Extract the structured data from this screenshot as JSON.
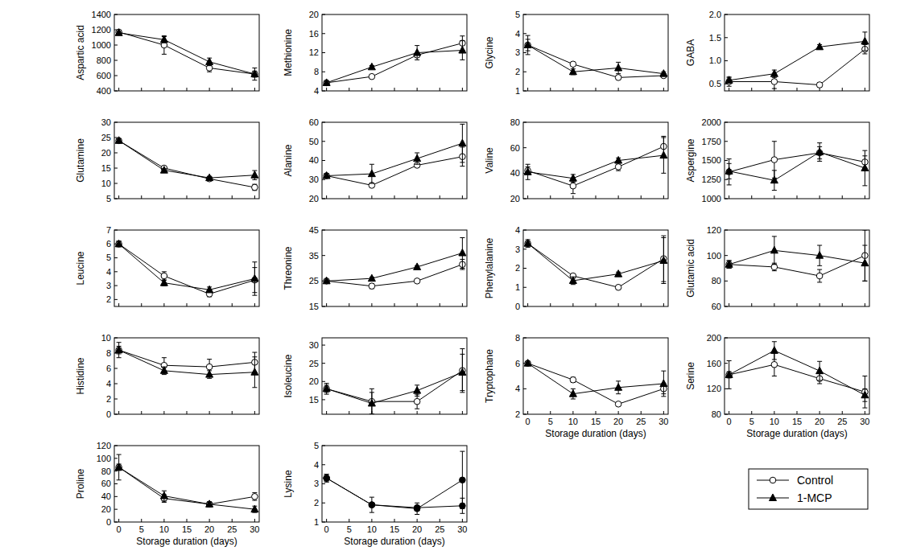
{
  "chart_data": [
    {
      "type": "line",
      "ylabel": "Aspartic acid",
      "x": [
        0,
        10,
        20,
        30
      ],
      "xlim": [
        -1,
        31
      ],
      "xticks": [
        0,
        5,
        10,
        15,
        20,
        25,
        30
      ],
      "ylim": [
        400,
        1400
      ],
      "yticks": [
        400,
        600,
        800,
        1000,
        1200,
        1400
      ],
      "tick_labels": "y",
      "series": [
        {
          "name": "Control",
          "color": "#000000",
          "marker": "open-circle",
          "values": [
            1170,
            1000,
            700,
            620
          ],
          "errors": [
            20,
            120,
            50,
            40
          ]
        },
        {
          "name": "1-MCP",
          "color": "#000000",
          "marker": "triangle",
          "values": [
            1160,
            1070,
            780,
            620
          ],
          "errors": [
            20,
            40,
            50,
            80
          ]
        }
      ]
    },
    {
      "type": "line",
      "ylabel": "Methionine",
      "x": [
        0,
        10,
        20,
        30
      ],
      "xlim": [
        -1,
        31
      ],
      "xticks": [
        0,
        5,
        10,
        15,
        20,
        25,
        30
      ],
      "ylim": [
        4,
        20
      ],
      "yticks": [
        4,
        8,
        12,
        16,
        20
      ],
      "tick_labels": "y",
      "series": [
        {
          "name": "Control",
          "color": "#000000",
          "marker": "open-circle",
          "values": [
            5.7,
            7,
            11.5,
            14
          ],
          "errors": [
            0.3,
            0.3,
            0.5,
            1.5
          ]
        },
        {
          "name": "1-MCP",
          "color": "#000000",
          "marker": "triangle",
          "values": [
            5.7,
            9,
            12,
            12.5
          ],
          "errors": [
            0.3,
            0.3,
            1.5,
            2
          ]
        }
      ]
    },
    {
      "type": "line",
      "ylabel": "Glycine",
      "x": [
        0,
        10,
        20,
        30
      ],
      "xlim": [
        -1,
        31
      ],
      "xticks": [
        0,
        5,
        10,
        15,
        20,
        25,
        30
      ],
      "ylim": [
        1,
        5
      ],
      "yticks": [
        1,
        2,
        3,
        4,
        5
      ],
      "tick_labels": "y",
      "series": [
        {
          "name": "Control",
          "color": "#000000",
          "marker": "open-circle",
          "values": [
            3.4,
            2.4,
            1.7,
            1.8
          ],
          "errors": [
            0.3,
            0.1,
            0.1,
            0.1
          ]
        },
        {
          "name": "1-MCP",
          "color": "#000000",
          "marker": "triangle",
          "values": [
            3.4,
            2.0,
            2.2,
            1.9
          ],
          "errors": [
            0.5,
            0.15,
            0.3,
            0.1
          ]
        }
      ]
    },
    {
      "type": "line",
      "ylabel": "GABA",
      "x": [
        0,
        10,
        20,
        30
      ],
      "xlim": [
        -1,
        31
      ],
      "xticks": [
        0,
        5,
        10,
        15,
        20,
        25,
        30
      ],
      "ylim": [
        0.35,
        2.0
      ],
      "yticks": [
        0.5,
        {
          "value": 1,
          "label": "1.0"
        },
        1.5,
        {
          "value": 2,
          "label": "2.0"
        }
      ],
      "tick_labels": "y",
      "series": [
        {
          "name": "Control",
          "color": "#000000",
          "marker": "open-circle",
          "values": [
            0.55,
            0.55,
            0.48,
            1.25
          ],
          "errors": [
            0.1,
            0.15,
            0.05,
            0.1
          ]
        },
        {
          "name": "1-MCP",
          "color": "#000000",
          "marker": "triangle",
          "values": [
            0.58,
            0.72,
            1.3,
            1.42
          ],
          "errors": [
            0.05,
            0.08,
            0.05,
            0.2
          ]
        }
      ]
    },
    {
      "type": "line",
      "ylabel": "Glutamine",
      "x": [
        0,
        10,
        20,
        30
      ],
      "xlim": [
        -1,
        31
      ],
      "xticks": [
        0,
        5,
        10,
        15,
        20,
        25,
        30
      ],
      "ylim": [
        5,
        30
      ],
      "yticks": [
        5,
        10,
        15,
        20,
        25,
        30
      ],
      "tick_labels": "y",
      "series": [
        {
          "name": "Control",
          "color": "#000000",
          "marker": "open-circle",
          "values": [
            24,
            15,
            11.5,
            8.7
          ],
          "errors": [
            0.5,
            0.5,
            0.5,
            1
          ]
        },
        {
          "name": "1-MCP",
          "color": "#000000",
          "marker": "triangle",
          "values": [
            24,
            14.3,
            11.8,
            12.7
          ],
          "errors": [
            0.5,
            0.5,
            0.5,
            1.5
          ]
        }
      ]
    },
    {
      "type": "line",
      "ylabel": "Alanine",
      "x": [
        0,
        10,
        20,
        30
      ],
      "xlim": [
        -1,
        31
      ],
      "xticks": [
        0,
        5,
        10,
        15,
        20,
        25,
        30
      ],
      "ylim": [
        20,
        60
      ],
      "yticks": [
        20,
        30,
        40,
        50,
        60
      ],
      "tick_labels": "y",
      "series": [
        {
          "name": "Control",
          "color": "#000000",
          "marker": "open-circle",
          "values": [
            32,
            27,
            37.5,
            42
          ],
          "errors": [
            1,
            1,
            1,
            5
          ]
        },
        {
          "name": "1-MCP",
          "color": "#000000",
          "marker": "triangle",
          "values": [
            32,
            33,
            41,
            49
          ],
          "errors": [
            1,
            5,
            3,
            10
          ]
        }
      ]
    },
    {
      "type": "line",
      "ylabel": "Valine",
      "x": [
        0,
        10,
        20,
        30
      ],
      "xlim": [
        -1,
        31
      ],
      "xticks": [
        0,
        5,
        10,
        15,
        20,
        25,
        30
      ],
      "ylim": [
        20,
        80
      ],
      "yticks": [
        20,
        40,
        60,
        80
      ],
      "tick_labels": "y",
      "series": [
        {
          "name": "Control",
          "color": "#000000",
          "marker": "open-circle",
          "values": [
            42,
            30,
            45,
            61
          ],
          "errors": [
            3,
            6,
            3,
            8
          ]
        },
        {
          "name": "1-MCP",
          "color": "#000000",
          "marker": "triangle",
          "values": [
            41,
            36,
            50,
            54
          ],
          "errors": [
            6,
            3,
            2,
            14
          ]
        }
      ]
    },
    {
      "type": "line",
      "ylabel": "Aspergine",
      "x": [
        0,
        10,
        20,
        30
      ],
      "xlim": [
        -1,
        31
      ],
      "xticks": [
        0,
        5,
        10,
        15,
        20,
        25,
        30
      ],
      "ylim": [
        1000,
        2000
      ],
      "yticks": [
        1000,
        1250,
        1500,
        1750,
        2000
      ],
      "tick_labels": "y",
      "series": [
        {
          "name": "Control",
          "color": "#000000",
          "marker": "open-circle",
          "values": [
            1350,
            1510,
            1600,
            1480
          ],
          "errors": [
            170,
            240,
            80,
            80
          ]
        },
        {
          "name": "1-MCP",
          "color": "#000000",
          "marker": "triangle",
          "values": [
            1360,
            1240,
            1610,
            1400
          ],
          "errors": [
            100,
            130,
            120,
            230
          ]
        }
      ]
    },
    {
      "type": "line",
      "ylabel": "Leucine",
      "x": [
        0,
        10,
        20,
        30
      ],
      "xlim": [
        -1,
        31
      ],
      "xticks": [
        0,
        5,
        10,
        15,
        20,
        25,
        30
      ],
      "ylim": [
        1.5,
        7
      ],
      "yticks": [
        2,
        3,
        4,
        5,
        6,
        7
      ],
      "tick_labels": "y",
      "series": [
        {
          "name": "Control",
          "color": "#000000",
          "marker": "open-circle",
          "values": [
            6.0,
            3.7,
            2.4,
            3.4
          ],
          "errors": [
            0.2,
            0.3,
            0.2,
            0.9
          ]
        },
        {
          "name": "1-MCP",
          "color": "#000000",
          "marker": "triangle",
          "values": [
            6.0,
            3.2,
            2.7,
            3.5
          ],
          "errors": [
            0.2,
            0.2,
            0.2,
            1.2
          ]
        }
      ]
    },
    {
      "type": "line",
      "ylabel": "Threonine",
      "x": [
        0,
        10,
        20,
        30
      ],
      "xlim": [
        -1,
        31
      ],
      "xticks": [
        0,
        5,
        10,
        15,
        20,
        25,
        30
      ],
      "ylim": [
        15,
        45
      ],
      "yticks": [
        15,
        25,
        35,
        45
      ],
      "tick_labels": "y",
      "series": [
        {
          "name": "Control",
          "color": "#000000",
          "marker": "open-circle",
          "values": [
            25,
            23,
            25,
            31.5
          ],
          "errors": [
            0.3,
            1,
            0.3,
            2
          ]
        },
        {
          "name": "1-MCP",
          "color": "#000000",
          "marker": "triangle",
          "values": [
            25,
            26,
            30.5,
            36
          ],
          "errors": [
            0.3,
            0.5,
            0.5,
            6
          ]
        }
      ]
    },
    {
      "type": "line",
      "ylabel": "Phenylalanine",
      "x": [
        0,
        10,
        20,
        30
      ],
      "xlim": [
        -1,
        31
      ],
      "xticks": [
        0,
        5,
        10,
        15,
        20,
        25,
        30
      ],
      "ylim": [
        0,
        4
      ],
      "yticks": [
        0,
        1,
        2,
        3,
        4
      ],
      "tick_labels": "y",
      "series": [
        {
          "name": "Control",
          "color": "#000000",
          "marker": "open-circle",
          "values": [
            3.3,
            1.6,
            1.0,
            2.5
          ],
          "errors": [
            0.1,
            0.1,
            0.1,
            1.2
          ]
        },
        {
          "name": "1-MCP",
          "color": "#000000",
          "marker": "triangle",
          "values": [
            3.3,
            1.35,
            1.7,
            2.4
          ],
          "errors": [
            0.2,
            0.2,
            0.1,
            1.2
          ]
        }
      ]
    },
    {
      "type": "line",
      "ylabel": "Glutamic acid",
      "x": [
        0,
        10,
        20,
        30
      ],
      "xlim": [
        -1,
        31
      ],
      "xticks": [
        0,
        5,
        10,
        15,
        20,
        25,
        30
      ],
      "ylim": [
        60,
        120
      ],
      "yticks": [
        60,
        80,
        100,
        120
      ],
      "tick_labels": "y",
      "series": [
        {
          "name": "Control",
          "color": "#000000",
          "marker": "open-circle",
          "values": [
            93,
            91,
            84,
            100
          ],
          "errors": [
            3,
            3,
            5,
            20
          ]
        },
        {
          "name": "1-MCP",
          "color": "#000000",
          "marker": "triangle",
          "values": [
            93,
            104,
            100,
            94
          ],
          "errors": [
            3,
            11,
            8,
            14
          ]
        }
      ]
    },
    {
      "type": "line",
      "ylabel": "Histidine",
      "x": [
        0,
        10,
        20,
        30
      ],
      "xlim": [
        -1,
        31
      ],
      "xticks": [
        0,
        5,
        10,
        15,
        20,
        25,
        30
      ],
      "ylim": [
        0,
        10
      ],
      "yticks": [
        0,
        2,
        4,
        6,
        8,
        10
      ],
      "tick_labels": "y",
      "series": [
        {
          "name": "Control",
          "color": "#000000",
          "marker": "open-circle",
          "values": [
            8.4,
            6.4,
            6.2,
            6.8
          ],
          "errors": [
            1,
            1,
            1,
            1.3
          ]
        },
        {
          "name": "1-MCP",
          "color": "#000000",
          "marker": "triangle",
          "values": [
            8.4,
            5.7,
            5.2,
            5.5
          ],
          "errors": [
            0.5,
            0.5,
            0.5,
            2
          ]
        }
      ]
    },
    {
      "type": "line",
      "ylabel": "Isoleucine",
      "x": [
        0,
        10,
        20,
        30
      ],
      "xlim": [
        -1,
        31
      ],
      "xticks": [
        0,
        5,
        10,
        15,
        20,
        25,
        30
      ],
      "ylim": [
        11,
        32
      ],
      "yticks": [
        15,
        20,
        25,
        30
      ],
      "tick_labels": "y",
      "series": [
        {
          "name": "Control",
          "color": "#000000",
          "marker": "open-circle",
          "values": [
            18,
            14.5,
            14.5,
            23
          ],
          "errors": [
            1.5,
            3.5,
            2,
            6
          ]
        },
        {
          "name": "1-MCP",
          "color": "#000000",
          "marker": "triangle",
          "values": [
            18,
            14,
            17.5,
            22.5
          ],
          "errors": [
            1,
            3,
            1.5,
            5
          ]
        }
      ]
    },
    {
      "type": "line",
      "ylabel": "Tryptophane",
      "xlabel": "Storage duration (days)",
      "x": [
        0,
        10,
        20,
        30
      ],
      "xlim": [
        -1,
        31
      ],
      "xticks": [
        0,
        5,
        10,
        15,
        20,
        25,
        30
      ],
      "ylim": [
        2,
        8
      ],
      "yticks": [
        2,
        4,
        6,
        8
      ],
      "series": [
        {
          "name": "Control",
          "color": "#000000",
          "marker": "open-circle",
          "values": [
            6.0,
            4.7,
            2.8,
            4.0
          ],
          "errors": [
            0.1,
            0.2,
            0.1,
            0.4
          ]
        },
        {
          "name": "1-MCP",
          "color": "#000000",
          "marker": "triangle",
          "values": [
            6.0,
            3.6,
            4.1,
            4.4
          ],
          "errors": [
            0.1,
            0.4,
            0.5,
            1
          ]
        }
      ]
    },
    {
      "type": "line",
      "ylabel": "Serine",
      "xlabel": "Storage duration (days)",
      "x": [
        0,
        10,
        20,
        30
      ],
      "xlim": [
        -1,
        31
      ],
      "xticks": [
        0,
        5,
        10,
        15,
        20,
        25,
        30
      ],
      "ylim": [
        80,
        200
      ],
      "yticks": [
        80,
        120,
        160,
        200
      ],
      "series": [
        {
          "name": "Control",
          "color": "#000000",
          "marker": "open-circle",
          "values": [
            142,
            158,
            136,
            115
          ],
          "errors": [
            22,
            18,
            8,
            25
          ]
        },
        {
          "name": "1-MCP",
          "color": "#000000",
          "marker": "triangle",
          "values": [
            142,
            180,
            148,
            110
          ],
          "errors": [
            5,
            14,
            15,
            10
          ]
        }
      ]
    },
    {
      "type": "line",
      "ylabel": "Proline",
      "xlabel": "Storage duration (days)",
      "x": [
        0,
        10,
        20,
        30
      ],
      "xlim": [
        -1,
        31
      ],
      "xticks": [
        0,
        5,
        10,
        15,
        20,
        25,
        30
      ],
      "ylim": [
        0,
        120
      ],
      "yticks": [
        0,
        20,
        40,
        60,
        80,
        100,
        120
      ],
      "series": [
        {
          "name": "Control",
          "color": "#000000",
          "marker": "open-circle",
          "values": [
            86,
            37,
            28,
            40
          ],
          "errors": [
            20,
            6,
            4,
            6
          ]
        },
        {
          "name": "1-MCP",
          "color": "#000000",
          "marker": "triangle",
          "values": [
            86,
            41,
            28,
            20
          ],
          "errors": [
            5,
            8,
            3,
            5
          ]
        }
      ]
    },
    {
      "type": "line",
      "ylabel": "Lysine",
      "xlabel": "Storage duration (days)",
      "x": [
        0,
        10,
        20,
        30
      ],
      "xlim": [
        -1,
        31
      ],
      "xticks": [
        0,
        5,
        10,
        15,
        20,
        25,
        30
      ],
      "ylim": [
        1,
        5
      ],
      "yticks": [
        1,
        2,
        3,
        4,
        5
      ],
      "legend": "lower right",
      "series": [
        {
          "name": "Control",
          "color": "#000000",
          "marker": "filled-circle",
          "values": [
            3.3,
            1.9,
            1.7,
            3.2
          ],
          "errors": [
            0.2,
            0.4,
            0.3,
            1.5
          ]
        },
        {
          "name": "1-MCP",
          "color": "#000000",
          "marker": "filled-circle",
          "values": [
            3.3,
            1.9,
            1.75,
            1.85
          ],
          "errors": [
            0.2,
            0.1,
            0.1,
            0.4
          ]
        }
      ]
    }
  ]
}
